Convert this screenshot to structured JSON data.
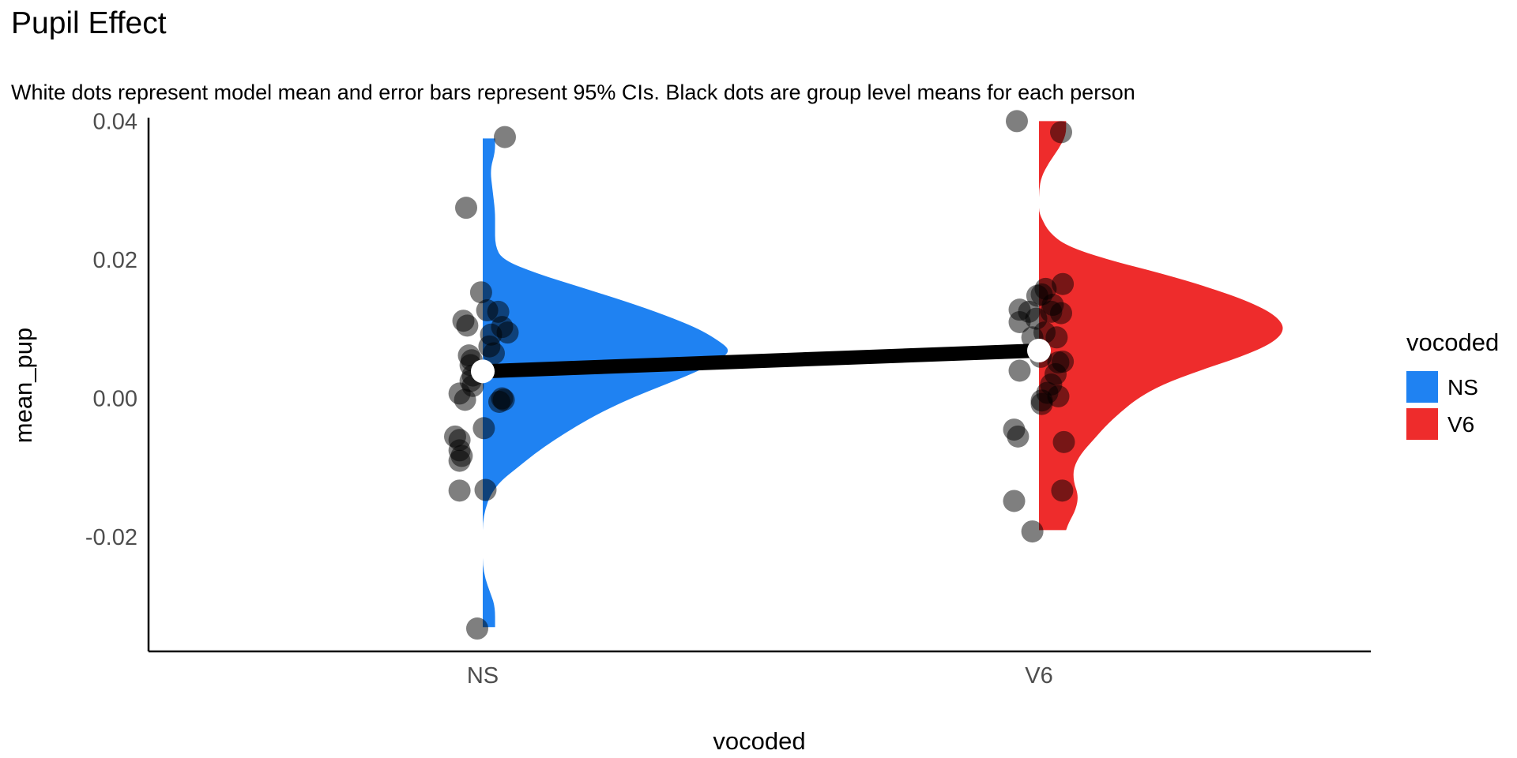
{
  "chart_data": {
    "type": "raincloud",
    "title": "Pupil Effect",
    "subtitle": "White dots represent model mean and error bars represent 95% CIs. Black dots are group level means for each person",
    "xlabel": "vocoded",
    "ylabel": "mean_pup",
    "categories": [
      "NS",
      "V6"
    ],
    "y_ticks": [
      -0.02,
      0.0,
      0.02,
      0.04
    ],
    "y_tick_labels": [
      "-0.02",
      "0.00",
      "0.02",
      "0.04"
    ],
    "ylim": [
      -0.0365,
      0.0405
    ],
    "legend": {
      "title": "vocoded",
      "placement": "right",
      "entries": [
        {
          "label": "NS",
          "color": "#1f82f2"
        },
        {
          "label": "V6",
          "color": "#ee2c2c"
        }
      ]
    },
    "model_means": [
      {
        "category": "NS",
        "mean": 0.0039
      },
      {
        "category": "V6",
        "mean": 0.0069
      }
    ],
    "series": [
      {
        "name": "NS",
        "color": "#1f82f2",
        "density": [
          [
            0.0375,
            0.05
          ],
          [
            0.0355,
            0.05
          ],
          [
            0.033,
            0.03
          ],
          [
            0.03,
            0.04
          ],
          [
            0.027,
            0.05
          ],
          [
            0.025,
            0.05
          ],
          [
            0.022,
            0.05
          ],
          [
            0.02,
            0.08
          ],
          [
            0.018,
            0.22
          ],
          [
            0.016,
            0.4
          ],
          [
            0.014,
            0.58
          ],
          [
            0.012,
            0.74
          ],
          [
            0.01,
            0.88
          ],
          [
            0.008,
            0.97
          ],
          [
            0.007,
            1.0
          ],
          [
            0.006,
            0.98
          ],
          [
            0.004,
            0.88
          ],
          [
            0.002,
            0.74
          ],
          [
            0.0,
            0.6
          ],
          [
            -0.002,
            0.48
          ],
          [
            -0.004,
            0.38
          ],
          [
            -0.006,
            0.29
          ],
          [
            -0.008,
            0.21
          ],
          [
            -0.01,
            0.14
          ],
          [
            -0.012,
            0.07
          ],
          [
            -0.014,
            0.03
          ],
          [
            -0.016,
            0.01
          ],
          [
            -0.018,
            0.0
          ],
          [
            -0.02,
            0.0
          ],
          [
            -0.022,
            0.0
          ],
          [
            -0.024,
            0.0
          ],
          [
            -0.026,
            0.01
          ],
          [
            -0.028,
            0.03
          ],
          [
            -0.03,
            0.05
          ],
          [
            -0.033,
            0.05
          ]
        ],
        "points": [
          {
            "dx": 0.04,
            "y": 0.0377
          },
          {
            "dx": -0.03,
            "y": 0.0275
          },
          {
            "dx": -0.003,
            "y": 0.0153
          },
          {
            "dx": 0.008,
            "y": 0.0127
          },
          {
            "dx": 0.028,
            "y": 0.0125
          },
          {
            "dx": -0.035,
            "y": 0.0112
          },
          {
            "dx": -0.028,
            "y": 0.0105
          },
          {
            "dx": 0.035,
            "y": 0.0103
          },
          {
            "dx": 0.045,
            "y": 0.0095
          },
          {
            "dx": 0.015,
            "y": 0.0092
          },
          {
            "dx": 0.012,
            "y": 0.0075
          },
          {
            "dx": 0.02,
            "y": 0.0065
          },
          {
            "dx": -0.025,
            "y": 0.0062
          },
          {
            "dx": -0.02,
            "y": 0.0055
          },
          {
            "dx": -0.022,
            "y": 0.0048
          },
          {
            "dx": -0.018,
            "y": 0.0033
          },
          {
            "dx": -0.022,
            "y": 0.0025
          },
          {
            "dx": -0.018,
            "y": 0.0018
          },
          {
            "dx": -0.042,
            "y": 0.0007
          },
          {
            "dx": -0.032,
            "y": -0.0002
          },
          {
            "dx": 0.035,
            "y": 0.0
          },
          {
            "dx": 0.038,
            "y": -0.0002
          },
          {
            "dx": 0.03,
            "y": -0.0005
          },
          {
            "dx": 0.002,
            "y": -0.0043
          },
          {
            "dx": -0.05,
            "y": -0.0055
          },
          {
            "dx": -0.042,
            "y": -0.006
          },
          {
            "dx": -0.042,
            "y": -0.0075
          },
          {
            "dx": -0.038,
            "y": -0.0083
          },
          {
            "dx": -0.042,
            "y": -0.009
          },
          {
            "dx": -0.042,
            "y": -0.0133
          },
          {
            "dx": 0.005,
            "y": -0.0132
          },
          {
            "dx": -0.01,
            "y": -0.0332
          }
        ]
      },
      {
        "name": "V6",
        "color": "#ee2c2c",
        "density": [
          [
            0.04,
            0.11
          ],
          [
            0.038,
            0.11
          ],
          [
            0.036,
            0.08
          ],
          [
            0.034,
            0.04
          ],
          [
            0.032,
            0.01
          ],
          [
            0.03,
            0.0
          ],
          [
            0.028,
            0.0
          ],
          [
            0.027,
            0.0
          ],
          [
            0.026,
            0.01
          ],
          [
            0.024,
            0.04
          ],
          [
            0.022,
            0.11
          ],
          [
            0.02,
            0.28
          ],
          [
            0.018,
            0.5
          ],
          [
            0.016,
            0.69
          ],
          [
            0.014,
            0.85
          ],
          [
            0.012,
            0.96
          ],
          [
            0.01,
            1.0
          ],
          [
            0.008,
            0.95
          ],
          [
            0.006,
            0.82
          ],
          [
            0.004,
            0.65
          ],
          [
            0.002,
            0.5
          ],
          [
            0.0,
            0.4
          ],
          [
            -0.002,
            0.33
          ],
          [
            -0.004,
            0.27
          ],
          [
            -0.006,
            0.22
          ],
          [
            -0.008,
            0.17
          ],
          [
            -0.01,
            0.14
          ],
          [
            -0.012,
            0.14
          ],
          [
            -0.014,
            0.16
          ],
          [
            -0.016,
            0.15
          ],
          [
            -0.018,
            0.12
          ],
          [
            -0.019,
            0.11
          ]
        ],
        "points": [
          {
            "dx": -0.04,
            "y": 0.04
          },
          {
            "dx": 0.04,
            "y": 0.0384
          },
          {
            "dx": 0.043,
            "y": 0.0165
          },
          {
            "dx": 0.012,
            "y": 0.0158
          },
          {
            "dx": 0.005,
            "y": 0.015
          },
          {
            "dx": -0.003,
            "y": 0.0148
          },
          {
            "dx": 0.025,
            "y": 0.0135
          },
          {
            "dx": -0.035,
            "y": 0.0128
          },
          {
            "dx": -0.018,
            "y": 0.0125
          },
          {
            "dx": 0.022,
            "y": 0.0125
          },
          {
            "dx": 0.04,
            "y": 0.0123
          },
          {
            "dx": -0.005,
            "y": 0.0115
          },
          {
            "dx": -0.035,
            "y": 0.011
          },
          {
            "dx": 0.01,
            "y": 0.0095
          },
          {
            "dx": -0.012,
            "y": 0.0088
          },
          {
            "dx": 0.032,
            "y": 0.0088
          },
          {
            "dx": 0.003,
            "y": 0.006
          },
          {
            "dx": 0.043,
            "y": 0.0053
          },
          {
            "dx": 0.035,
            "y": 0.0052
          },
          {
            "dx": -0.035,
            "y": 0.004
          },
          {
            "dx": 0.03,
            "y": 0.0035
          },
          {
            "dx": 0.022,
            "y": 0.002
          },
          {
            "dx": 0.015,
            "y": 0.0008
          },
          {
            "dx": 0.035,
            "y": 0.0003
          },
          {
            "dx": 0.005,
            "y": -0.0003
          },
          {
            "dx": 0.005,
            "y": -0.0008
          },
          {
            "dx": -0.045,
            "y": -0.0045
          },
          {
            "dx": -0.038,
            "y": -0.0055
          },
          {
            "dx": 0.045,
            "y": -0.0063
          },
          {
            "dx": 0.042,
            "y": -0.0133
          },
          {
            "dx": -0.045,
            "y": -0.0148
          },
          {
            "dx": -0.012,
            "y": -0.0192
          }
        ]
      }
    ]
  }
}
